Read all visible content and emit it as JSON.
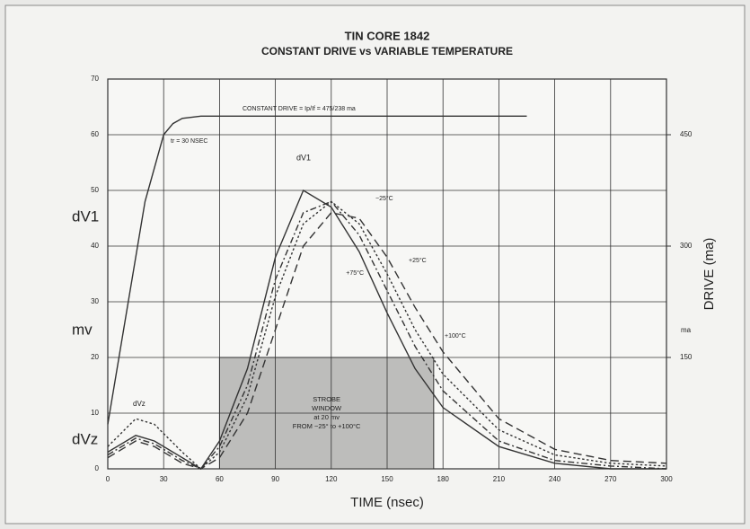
{
  "chart_data": {
    "type": "line",
    "title": "TIN CORE 1842",
    "subtitle": "CONSTANT DRIVE vs VARIABLE TEMPERATURE",
    "x_label": "TIME (nsec)",
    "y2_label": "DRIVE (ma)",
    "y_labels": [
      "dV1",
      "mv",
      "dVz"
    ],
    "y2_unit": "ma",
    "xlim": [
      0,
      300
    ],
    "xticks": [
      0,
      30,
      60,
      90,
      120,
      150,
      180,
      210,
      240,
      270,
      300
    ],
    "ylim": [
      0,
      70
    ],
    "yticks": [
      0,
      10,
      20,
      30,
      40,
      50,
      60,
      70
    ],
    "y2lim": [
      0,
      525
    ],
    "y2ticks": [
      150,
      300,
      450
    ],
    "grid": true,
    "color": "#333333",
    "series": [
      {
        "name": "CONSTANT DRIVE = Ip/If = 475/238 ma",
        "axis": "y2",
        "line_style": "solid",
        "x": [
          0,
          10,
          20,
          30,
          35,
          40,
          50,
          225
        ],
        "values": [
          60,
          210,
          360,
          450,
          465,
          472,
          475,
          475
        ]
      },
      {
        "name": "+100°C",
        "line_style": "solid",
        "x": [
          0,
          15,
          25,
          40,
          50,
          60,
          75,
          90,
          105,
          120,
          135,
          150,
          165,
          180,
          210,
          240,
          270,
          300
        ],
        "values": [
          3,
          6,
          5,
          2,
          0,
          5,
          18,
          38,
          50,
          47,
          39,
          28,
          18,
          11,
          4,
          1,
          0,
          0
        ]
      },
      {
        "name": "+75°C",
        "line_style": "dashdot",
        "x": [
          0,
          15,
          25,
          40,
          50,
          60,
          75,
          90,
          105,
          120,
          135,
          150,
          165,
          180,
          210,
          240,
          270,
          300
        ],
        "values": [
          2.5,
          5.5,
          4.5,
          1.5,
          0,
          4,
          15,
          34,
          46,
          48,
          42,
          32,
          22,
          14,
          5,
          1.5,
          0.5,
          0
        ]
      },
      {
        "name": "+25°C",
        "line_style": "dotted",
        "x": [
          0,
          15,
          25,
          40,
          50,
          60,
          75,
          90,
          105,
          120,
          135,
          150,
          165,
          180,
          210,
          240,
          270,
          300
        ],
        "values": [
          4,
          9,
          8,
          3,
          0,
          3,
          13,
          31,
          44,
          48,
          44,
          35,
          25,
          17,
          7,
          2.5,
          1,
          0.5
        ]
      },
      {
        "name": "−25°C",
        "line_style": "dashed",
        "x": [
          0,
          15,
          25,
          40,
          50,
          60,
          75,
          90,
          105,
          120,
          135,
          150,
          165,
          180,
          210,
          240,
          270,
          300
        ],
        "values": [
          2,
          5,
          4,
          1,
          0,
          2,
          10,
          25,
          40,
          46,
          45,
          38,
          29,
          21,
          9,
          3.5,
          1.5,
          1
        ]
      }
    ],
    "annotations": [
      "tr = 30 NSEC",
      "dV1",
      "dVz"
    ],
    "strobe_window": {
      "label": [
        "STROBE",
        "WINDOW",
        "at 20 mv",
        "FROM −25° to +100°C"
      ],
      "x": [
        60,
        175
      ],
      "y": [
        0,
        20
      ]
    }
  }
}
